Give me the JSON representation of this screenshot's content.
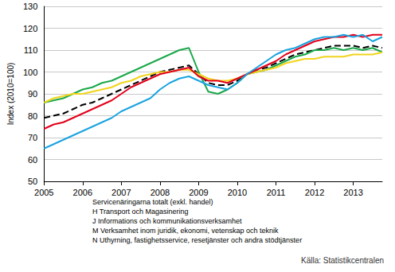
{
  "chart_data": {
    "type": "line",
    "ylabel": "Index (2010=100)",
    "source": "Källa: Statistikcentralen",
    "x": [
      2005,
      2005.25,
      2005.5,
      2005.75,
      2006,
      2006.25,
      2006.5,
      2006.75,
      2007,
      2007.25,
      2007.5,
      2007.75,
      2008,
      2008.25,
      2008.5,
      2008.75,
      2009,
      2009.25,
      2009.5,
      2009.75,
      2010,
      2010.25,
      2010.5,
      2010.75,
      2011,
      2011.25,
      2011.5,
      2011.75,
      2012,
      2012.25,
      2012.5,
      2012.75,
      2013,
      2013.25,
      2013.5,
      2013.75
    ],
    "xlim": [
      2005,
      2013.75
    ],
    "xticks": [
      2005,
      2006,
      2007,
      2008,
      2009,
      2010,
      2011,
      2012,
      2013
    ],
    "ylim": [
      50,
      130
    ],
    "yticks": [
      50,
      60,
      70,
      80,
      90,
      100,
      110,
      120,
      130
    ],
    "grid": true,
    "legend": "bottom",
    "series": [
      {
        "name": "Servicenäringarna totalt (exkl. handel)",
        "color": "#000000",
        "line_style": "dashed",
        "values": [
          79,
          80,
          81,
          83,
          85,
          86,
          88,
          90,
          92,
          94,
          96,
          98,
          100,
          101,
          102,
          103,
          99,
          95,
          94,
          94,
          96,
          99,
          101,
          102,
          104,
          106,
          108,
          109,
          110,
          111,
          112,
          112,
          112,
          111,
          112,
          111
        ]
      },
      {
        "name": "H Transport och Magasinering",
        "color": "#1aa84a",
        "line_style": "solid",
        "values": [
          86,
          87,
          88,
          90,
          92,
          93,
          95,
          96,
          98,
          100,
          102,
          104,
          106,
          108,
          110,
          111,
          100,
          91,
          90,
          92,
          95,
          99,
          100,
          101,
          103,
          105,
          107,
          108,
          110,
          110,
          111,
          110,
          111,
          110,
          111,
          109
        ]
      },
      {
        "name": "J Informations och kommunikationsverksamhet",
        "color": "#f2d41c",
        "line_style": "solid",
        "values": [
          86,
          88,
          89,
          90,
          90,
          91,
          92,
          93,
          95,
          96,
          98,
          99,
          100,
          100,
          101,
          101,
          99,
          97,
          96,
          96,
          97,
          99,
          100,
          101,
          102,
          104,
          105,
          106,
          106,
          107,
          107,
          107,
          108,
          108,
          108,
          109
        ]
      },
      {
        "name": "M Verksamhet inom juridik, ekonomi, vetenskap och teknik",
        "color": "#e3001b",
        "line_style": "solid",
        "values": [
          74,
          76,
          77,
          79,
          81,
          83,
          85,
          87,
          90,
          93,
          95,
          97,
          99,
          100,
          101,
          102,
          98,
          96,
          96,
          95,
          97,
          99,
          101,
          103,
          105,
          108,
          110,
          112,
          114,
          115,
          116,
          116,
          117,
          116,
          117,
          117
        ]
      },
      {
        "name": "N Uthyrning, fastighetsservice, resetjänster och andra stödtjänster",
        "color": "#1aa3e0",
        "line_style": "solid",
        "values": [
          65,
          67,
          69,
          71,
          73,
          75,
          77,
          79,
          82,
          84,
          86,
          88,
          92,
          95,
          97,
          98,
          96,
          94,
          93,
          92,
          95,
          99,
          102,
          105,
          108,
          110,
          111,
          113,
          115,
          116,
          116,
          117,
          116,
          117,
          114,
          116
        ]
      }
    ]
  }
}
